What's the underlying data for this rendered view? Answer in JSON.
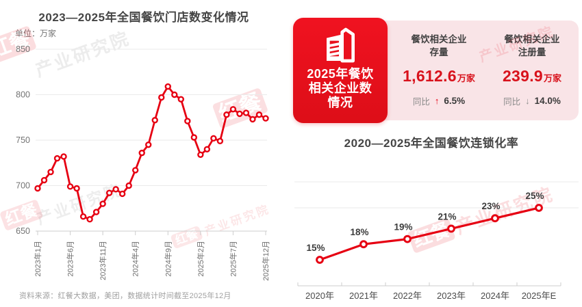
{
  "chart_data": [
    {
      "type": "line",
      "title": "2023—2025年全国餐饮门店数变化情况",
      "unit_label": "单位：万家",
      "x_start": "2023年1月",
      "x_end": "2025年12月",
      "x_interval": "monthly",
      "x_tick_labels": [
        "2023年1月",
        "2023年6月",
        "2023年11月",
        "2024年4月",
        "2024年9月",
        "2025年2月",
        "2025年7月",
        "2025年12月"
      ],
      "x_tick_indices": [
        0,
        5,
        10,
        15,
        20,
        25,
        30,
        35
      ],
      "values": [
        697,
        706,
        715,
        730,
        732,
        699,
        697,
        666,
        663,
        671,
        680,
        692,
        696,
        691,
        700,
        717,
        736,
        745,
        772,
        797,
        809,
        800,
        795,
        771,
        753,
        734,
        740,
        752,
        749,
        778,
        784,
        779,
        780,
        773,
        778,
        774
      ],
      "ylim": [
        650,
        850
      ],
      "yticks": [
        650,
        700,
        750,
        800,
        850
      ],
      "grid": "horizontal",
      "legend": "none",
      "line_color": "#e60012",
      "marker": "open-circle"
    },
    {
      "type": "line",
      "title": "2020—2025年全国餐饮连锁化率",
      "categories": [
        "2020年",
        "2021年",
        "2022年",
        "2023年",
        "2024年",
        "2025年E"
      ],
      "values": [
        15,
        18,
        19,
        21,
        23,
        25
      ],
      "point_labels": [
        "15%",
        "18%",
        "19%",
        "21%",
        "23%",
        "25%"
      ],
      "ylim": [
        10,
        30
      ],
      "gridline_values": [
        25,
        30
      ],
      "y_axis": "truncated, unlabeled",
      "grid": "partial-horizontal",
      "legend": "none",
      "line_color": "#e60012",
      "marker": "open-circle"
    }
  ],
  "stats_card": {
    "badge": {
      "icon": "building-icon",
      "lines": [
        "2025年餐饮",
        "相关企业数",
        "情况"
      ]
    },
    "stats": [
      {
        "label_lines": [
          "餐饮相关企业",
          "存量"
        ],
        "value": "1,612.6",
        "unit": "万家",
        "yoy_label": "同比",
        "yoy_dir": "up",
        "yoy_arrow": "↑",
        "yoy_value": "6.5%"
      },
      {
        "label_lines": [
          "餐饮相关企业",
          "注册量"
        ],
        "value": "239.9",
        "unit": "万家",
        "yoy_label": "同比",
        "yoy_dir": "down",
        "yoy_arrow": "↓",
        "yoy_value": "14.0%"
      }
    ]
  },
  "footer": {
    "source": "资料来源：红餐大数据，美团，数据统计时间截至2025年12月"
  },
  "watermark": {
    "logo": "红餐",
    "text": "产业研究院"
  },
  "colors": {
    "brand_red": "#e60012",
    "number_red": "#d8121c",
    "badge_red": "#e8111c",
    "pink_panel": "#f9e4e7",
    "dark_text": "#454545",
    "gray_text": "#8a8a8a",
    "grid_line": "#eaeaea",
    "axis_line": "#cccccc"
  }
}
